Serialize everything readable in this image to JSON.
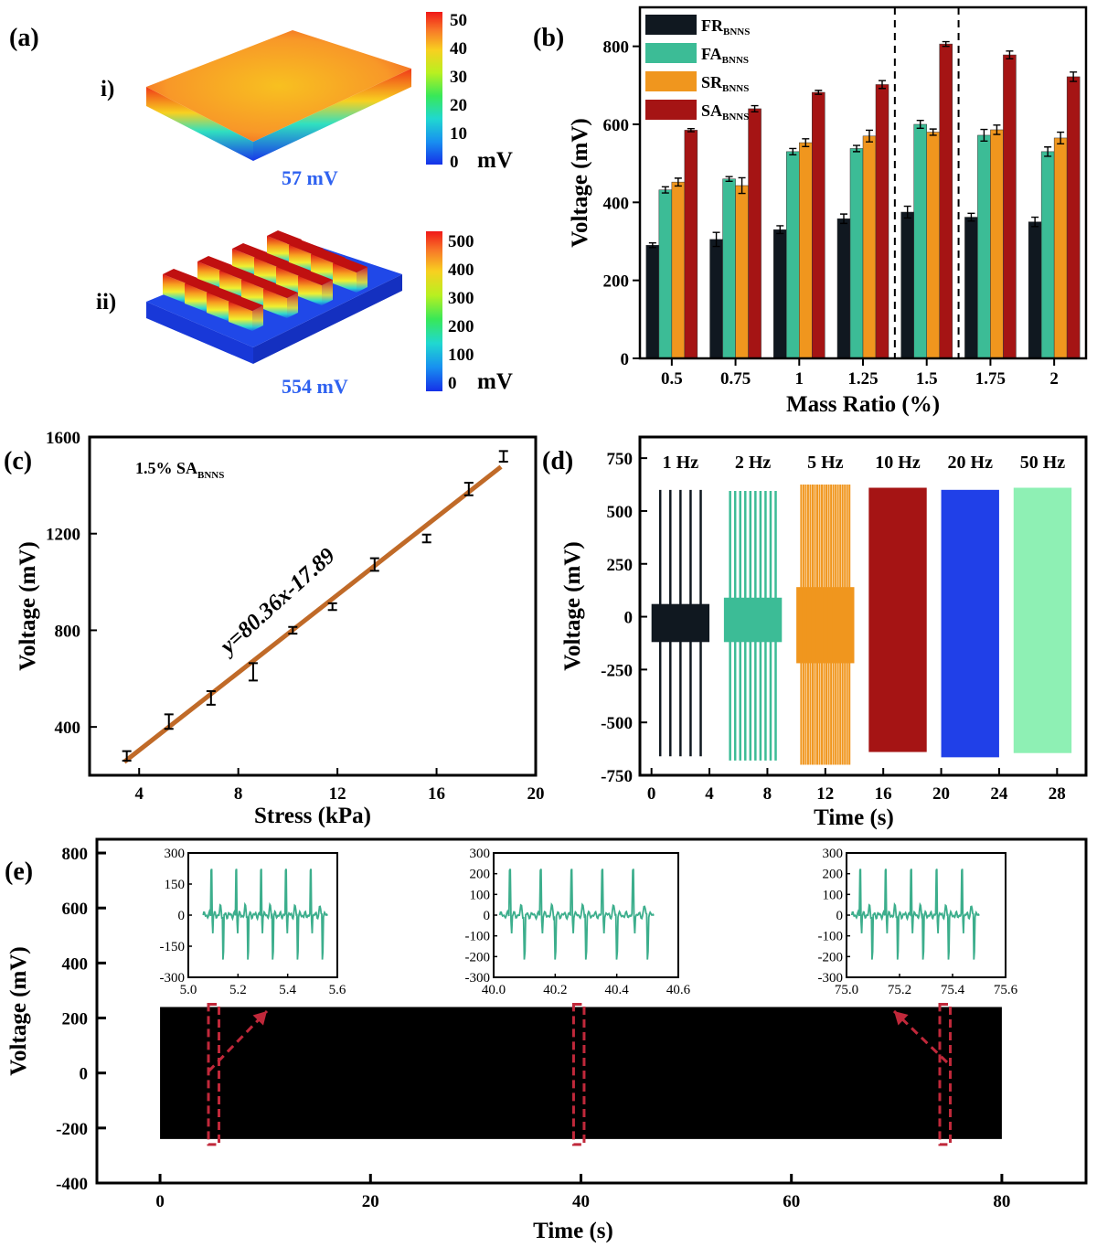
{
  "panel_labels": {
    "a": "(a)",
    "b": "(b)",
    "c": "(c)",
    "d": "(d)",
    "e": "(e)"
  },
  "panel_a": {
    "i": {
      "label": "i)",
      "value_label": "57 mV",
      "colorbar_ticks": [
        "50",
        "40",
        "30",
        "20",
        "10",
        "0"
      ],
      "unit": "mV"
    },
    "ii": {
      "label": "ii)",
      "value_label": "554 mV",
      "colorbar_ticks": [
        "500",
        "400",
        "300",
        "200",
        "100",
        "0"
      ],
      "unit": "mV"
    }
  },
  "chart_data": [
    {
      "id": "b",
      "type": "bar",
      "xlabel": "Mass Ratio (%)",
      "ylabel": "Voltage (mV)",
      "ylim": [
        0,
        900
      ],
      "yticks": [
        0,
        200,
        400,
        600,
        800
      ],
      "categories": [
        "0.5",
        "0.75",
        "1",
        "1.25",
        "1.5",
        "1.75",
        "2"
      ],
      "legend_position": "top-left",
      "series": [
        {
          "name": "FR",
          "sub": "BNNS",
          "color": "#101820",
          "values": [
            290,
            305,
            330,
            358,
            375,
            362,
            350
          ],
          "errors": [
            6,
            18,
            10,
            12,
            15,
            10,
            12
          ]
        },
        {
          "name": "FA",
          "sub": "BNNS",
          "color": "#3cbc96",
          "values": [
            432,
            460,
            530,
            538,
            600,
            572,
            530
          ],
          "errors": [
            8,
            6,
            8,
            8,
            10,
            15,
            12
          ]
        },
        {
          "name": "SR",
          "sub": "BNNS",
          "color": "#f0961e",
          "values": [
            452,
            443,
            553,
            570,
            580,
            586,
            565
          ],
          "errors": [
            10,
            20,
            10,
            15,
            8,
            12,
            15
          ]
        },
        {
          "name": "SA",
          "sub": "BNNS",
          "color": "#a51414",
          "values": [
            585,
            640,
            682,
            702,
            806,
            778,
            722
          ],
          "errors": [
            4,
            8,
            5,
            10,
            6,
            10,
            12
          ]
        }
      ],
      "highlight_category": "1.5"
    },
    {
      "id": "c",
      "type": "scatter",
      "xlabel": "Stress (kPa)",
      "ylabel": "Voltage (mV)",
      "xlim": [
        2,
        20
      ],
      "ylim": [
        200,
        1600
      ],
      "xticks": [
        4,
        8,
        12,
        16,
        20
      ],
      "yticks": [
        400,
        800,
        1200,
        1600
      ],
      "annotation": "1.5% SA",
      "annotation_sub": "BNNS",
      "fit_label": "y=80.36x-17.89",
      "fit": {
        "slope": 80.36,
        "intercept": -17.89,
        "x_range": [
          3.4,
          18.6
        ],
        "color": "#c06a28"
      },
      "points": [
        {
          "x": 3.5,
          "y": 280,
          "err": 20
        },
        {
          "x": 5.2,
          "y": 422,
          "err": 30
        },
        {
          "x": 6.9,
          "y": 520,
          "err": 28
        },
        {
          "x": 8.6,
          "y": 628,
          "err": 36
        },
        {
          "x": 10.2,
          "y": 800,
          "err": 14
        },
        {
          "x": 11.8,
          "y": 898,
          "err": 14
        },
        {
          "x": 13.5,
          "y": 1072,
          "err": 26
        },
        {
          "x": 15.6,
          "y": 1180,
          "err": 16
        },
        {
          "x": 17.3,
          "y": 1385,
          "err": 26
        },
        {
          "x": 18.7,
          "y": 1520,
          "err": 22
        }
      ]
    },
    {
      "id": "d",
      "type": "line",
      "xlabel": "Time (s)",
      "ylabel": "Voltage (mV)",
      "xlim": [
        -0.8,
        30
      ],
      "ylim": [
        -750,
        850
      ],
      "xticks": [
        0,
        4,
        8,
        12,
        16,
        20,
        24,
        28
      ],
      "yticks": [
        -750,
        -500,
        -250,
        0,
        250,
        500,
        750
      ],
      "series": [
        {
          "name": "1 Hz",
          "color": "#101820",
          "x_range": [
            0,
            4
          ],
          "peak": 600,
          "trough": -660,
          "noise": [
            -120,
            60
          ],
          "pulses": 5
        },
        {
          "name": "2 Hz",
          "color": "#3cbc96",
          "x_range": [
            5,
            9
          ],
          "peak": 595,
          "trough": -680,
          "noise": [
            -120,
            90
          ],
          "pulses": 10
        },
        {
          "name": "5 Hz",
          "color": "#f0961e",
          "x_range": [
            10,
            14
          ],
          "peak": 625,
          "trough": -700,
          "noise": [
            -220,
            140
          ],
          "pulses": 22
        },
        {
          "name": "10 Hz",
          "color": "#a51414",
          "x_range": [
            15,
            19
          ],
          "peak": 610,
          "trough": -640,
          "noise": null,
          "pulses": 0
        },
        {
          "name": "20 Hz",
          "color": "#2040e8",
          "x_range": [
            20,
            24
          ],
          "peak": 600,
          "trough": -665,
          "noise": null,
          "pulses": 0
        },
        {
          "name": "50 Hz",
          "color": "#8ef0b4",
          "x_range": [
            25,
            29
          ],
          "peak": 610,
          "trough": -645,
          "noise": null,
          "pulses": 0
        }
      ]
    },
    {
      "id": "e",
      "type": "line",
      "xlabel": "Time (s)",
      "ylabel": "Voltage (mV)",
      "xlim": [
        -6,
        88
      ],
      "ylim": [
        -400,
        850
      ],
      "xticks": [
        0,
        20,
        40,
        60,
        80
      ],
      "yticks": [
        -400,
        -200,
        0,
        200,
        400,
        600,
        800
      ],
      "signal": {
        "x_range": [
          0,
          80
        ],
        "max": 240,
        "min": -240,
        "color": "#000000"
      },
      "highlights": [
        {
          "x_range": [
            4.6,
            5.6
          ],
          "y_range": [
            -260,
            250
          ]
        },
        {
          "x_range": [
            39.3,
            40.3
          ],
          "y_range": [
            -260,
            250
          ]
        },
        {
          "x_range": [
            74.1,
            75.1
          ],
          "y_range": [
            -260,
            250
          ]
        }
      ],
      "insets": [
        {
          "xlim": [
            5.0,
            5.6
          ],
          "xticks": [
            "5.0",
            "5.2",
            "5.4",
            "5.6"
          ],
          "ylim": [
            -300,
            300
          ],
          "yticks": [
            "300",
            "150",
            "0",
            "-150",
            "-300"
          ],
          "x_range": [
            5.06,
            5.56
          ],
          "color": "#3cae8c"
        },
        {
          "xlim": [
            40.0,
            40.6
          ],
          "xticks": [
            "40.0",
            "40.2",
            "40.4",
            "40.6"
          ],
          "ylim": [
            -300,
            300
          ],
          "yticks": [
            "300",
            "200",
            "100",
            "0",
            "-100",
            "-200",
            "-300"
          ],
          "x_range": [
            40.02,
            40.52
          ],
          "color": "#3cae8c"
        },
        {
          "xlim": [
            75.0,
            75.6
          ],
          "xticks": [
            "75.0",
            "75.2",
            "75.4",
            "75.6"
          ],
          "ylim": [
            -300,
            300
          ],
          "yticks": [
            "300",
            "200",
            "100",
            "0",
            "-100",
            "-200",
            "-300"
          ],
          "x_range": [
            75.02,
            75.5
          ],
          "color": "#3cae8c"
        }
      ]
    }
  ]
}
